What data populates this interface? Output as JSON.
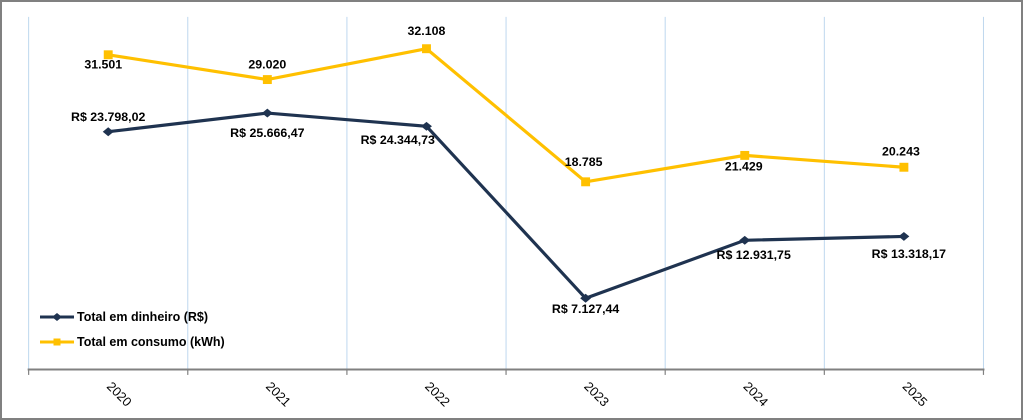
{
  "window": {
    "background": "#ffffff",
    "frame_border_color": "#808080"
  },
  "chart_data": {
    "type": "line",
    "title": "",
    "xlabel": "",
    "ylabel": "",
    "categories": [
      "2020",
      "2021",
      "2022",
      "2023",
      "2024",
      "2025"
    ],
    "series": [
      {
        "name": "Total em dinheiro (R$)",
        "color": "#1f3350",
        "marker": "diamond",
        "values": [
          23798.02,
          25666.47,
          24344.73,
          7127.44,
          12931.75,
          13318.17
        ],
        "labels": [
          "R$ 23.798,02",
          "R$ 25.666,47",
          "R$ 24.344,73",
          "R$ 7.127,44",
          "R$ 12.931,75",
          "R$ 13.318,17"
        ],
        "label_offsets": [
          [
            0,
            -11
          ],
          [
            0,
            24
          ],
          [
            -29,
            18
          ],
          [
            0,
            15
          ],
          [
            9,
            19
          ],
          [
            5,
            22
          ]
        ]
      },
      {
        "name": "Total em consumo (kWh)",
        "color": "#ffc000",
        "marker": "square",
        "values": [
          31501,
          29020,
          32108,
          18785,
          21429,
          20243
        ],
        "labels": [
          "31.501",
          "29.020",
          "32.108",
          "18.785",
          "21.429",
          "20.243"
        ],
        "label_offsets": [
          [
            -5,
            14
          ],
          [
            0,
            -11
          ],
          [
            0,
            -14
          ],
          [
            -2,
            -16
          ],
          [
            -1,
            15
          ],
          [
            -3,
            -12
          ]
        ]
      }
    ],
    "ylim": [
      0,
      35000
    ],
    "y_axis_visible": false,
    "grid": "vertical",
    "gridline_color": "#bdd7ee",
    "axis_color": "#808080",
    "label_color": "#000000",
    "legend_position": "inside-bottom-left",
    "x_tick_rotation_deg": 45
  }
}
